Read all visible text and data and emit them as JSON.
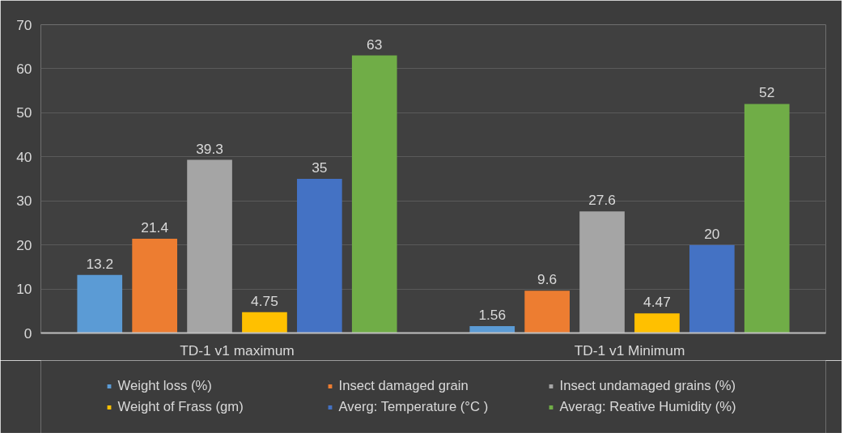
{
  "chart_data": {
    "type": "bar",
    "categories": [
      "TD-1 v1 maximum",
      "TD-1 v1 Minimum"
    ],
    "series": [
      {
        "name": "Weight loss (%)",
        "color": "#5b9bd5",
        "values": [
          13.2,
          1.56
        ]
      },
      {
        "name": "Insect damaged grain",
        "color": "#ed7d31",
        "values": [
          21.4,
          9.6
        ]
      },
      {
        "name": "Insect undamaged grains (%)",
        "color": "#a5a5a5",
        "values": [
          39.3,
          27.6
        ]
      },
      {
        "name": "Weight of Frass (gm)",
        "color": "#ffc000",
        "values": [
          4.75,
          4.47
        ]
      },
      {
        "name": "Averg: Temperature (°C )",
        "color": "#4472c4",
        "values": [
          35,
          20
        ]
      },
      {
        "name": "Averag: Reative Humidity (%)",
        "color": "#70ad47",
        "values": [
          63,
          52
        ]
      }
    ],
    "ylim": [
      0,
      70
    ],
    "yticks": [
      0,
      10,
      20,
      30,
      40,
      50,
      60,
      70
    ],
    "grid": "y",
    "legend": "bottom",
    "data_labels": true
  }
}
